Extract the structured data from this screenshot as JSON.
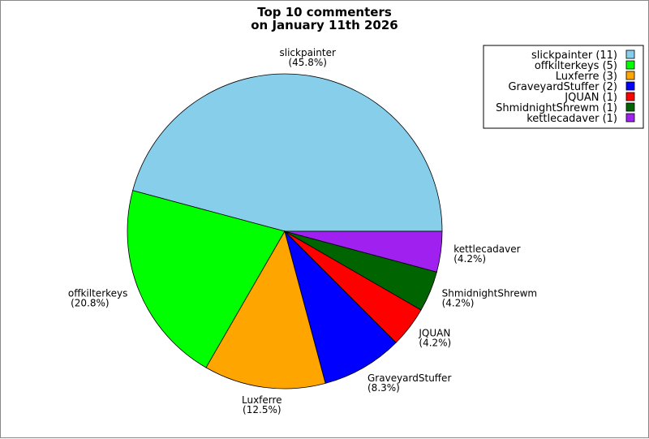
{
  "chart_data": {
    "type": "pie",
    "title": [
      "Top 10 commenters",
      "on January 11th 2026"
    ],
    "legend_position": "top-right",
    "slices": [
      {
        "name": "slickpainter",
        "value": 11,
        "percent_label": "(45.8%)",
        "legend_label": "slickpainter (11)",
        "color": "#87ceeb"
      },
      {
        "name": "offkilterkeys",
        "value": 5,
        "percent_label": "(20.8%)",
        "legend_label": "offkilterkeys (5)",
        "color": "#00ff00"
      },
      {
        "name": "Luxferre",
        "value": 3,
        "percent_label": "(12.5%)",
        "legend_label": "Luxferre (3)",
        "color": "#ffa500"
      },
      {
        "name": "GraveyardStuffer",
        "value": 2,
        "percent_label": "(8.3%)",
        "legend_label": "GraveyardStuffer (2)",
        "color": "#0000ff"
      },
      {
        "name": "JQUAN",
        "value": 1,
        "percent_label": "(4.2%)",
        "legend_label": "JQUAN (1)",
        "color": "#ff0000"
      },
      {
        "name": "ShmidnightShrewm",
        "value": 1,
        "percent_label": "(4.2%)",
        "legend_label": "ShmidnightShrewm (1)",
        "color": "#006400"
      },
      {
        "name": "kettlecadaver",
        "value": 1,
        "percent_label": "(4.2%)",
        "legend_label": "kettlecadaver (1)",
        "color": "#a020f0"
      }
    ]
  }
}
